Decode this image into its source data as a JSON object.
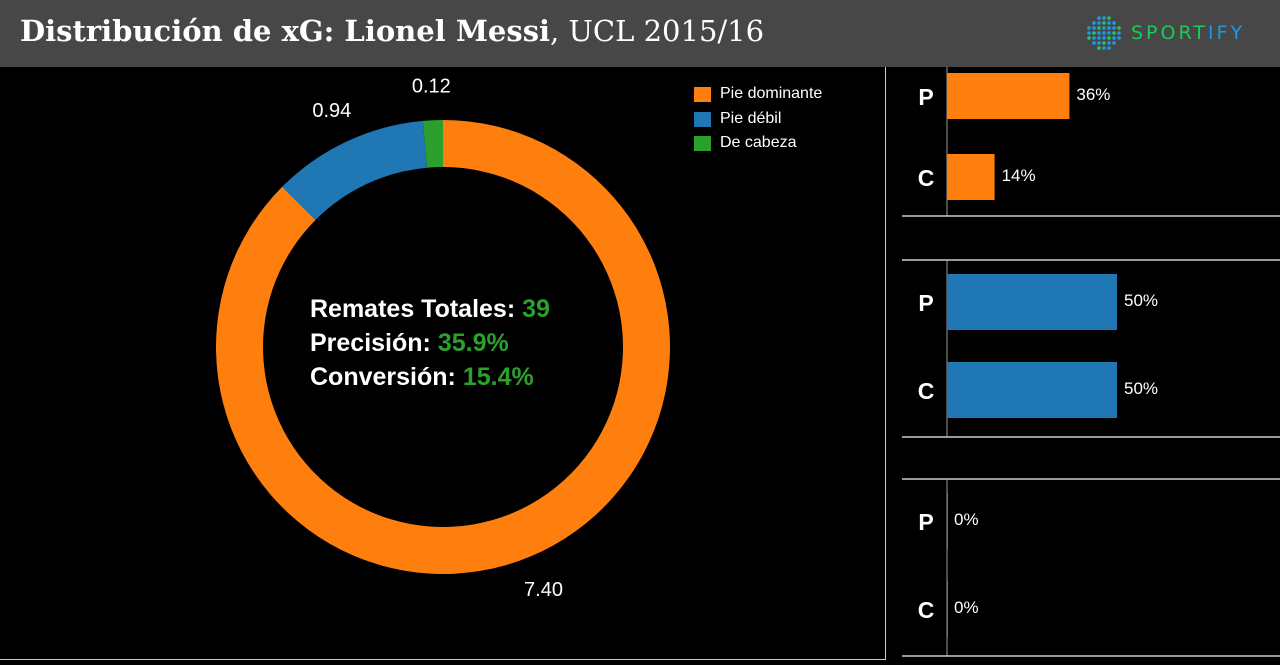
{
  "header": {
    "title_bold": "Distribución de xG: Lionel Messi",
    "title_rest": ", UCL 2015/16",
    "logo": {
      "part1": "SPORT",
      "part2": "IFY",
      "colors": {
        "green": "#1ec85a",
        "blue": "#1a9be6"
      }
    }
  },
  "stats": [
    {
      "label": "Remates Totales:",
      "value": "39"
    },
    {
      "label": "Precisión:",
      "value": "35.9%"
    },
    {
      "label": "Conversión:",
      "value": "15.4%"
    }
  ],
  "chart_data": [
    {
      "type": "pie",
      "subtype": "donut",
      "slices": [
        {
          "name": "Pie dominante",
          "value": 7.4,
          "label": "7.40",
          "color": "#ff7f0e"
        },
        {
          "name": "Pie débil",
          "value": 0.94,
          "label": "0.94",
          "color": "#1f77b4"
        },
        {
          "name": "De cabeza",
          "value": 0.12,
          "label": "0.12",
          "color": "#2ca02c"
        }
      ],
      "legend": "top-right"
    },
    {
      "type": "bar",
      "orientation": "horizontal",
      "panels": [
        {
          "color": "#ff7f0e",
          "categories": [
            "P",
            "C"
          ],
          "values": [
            36,
            14
          ],
          "labels": [
            "36%",
            "14%"
          ]
        },
        {
          "color": "#1f77b4",
          "categories": [
            "P",
            "C"
          ],
          "values": [
            50,
            50
          ],
          "labels": [
            "50%",
            "50%"
          ]
        },
        {
          "color": "#2ca02c",
          "categories": [
            "P",
            "C"
          ],
          "values": [
            0,
            0
          ],
          "labels": [
            "0%",
            "0%"
          ]
        }
      ],
      "xlim": [
        0,
        100
      ]
    }
  ]
}
